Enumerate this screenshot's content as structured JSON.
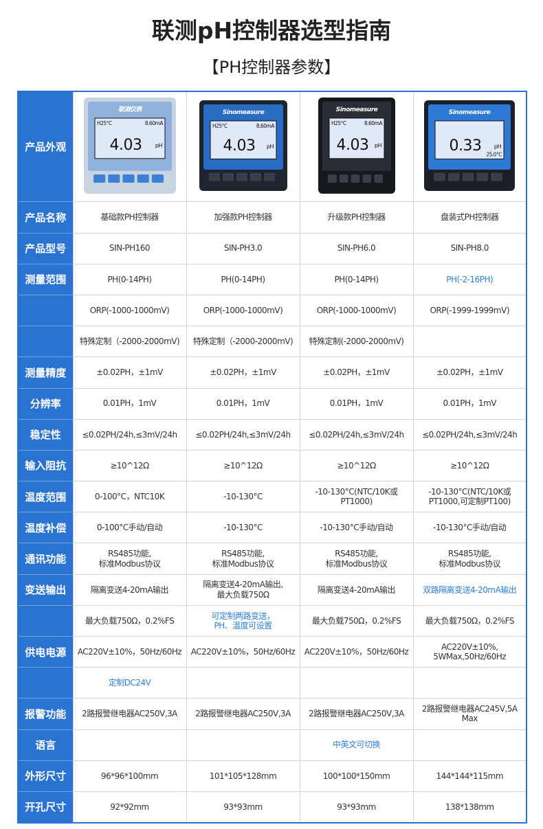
{
  "header": {
    "title": "联测pH控制器选型指南",
    "subtitle": "【PH控制器参数】"
  },
  "table": {
    "appearance_label": "产品外观",
    "devices": [
      {
        "brand": "联测仪表",
        "status": [
          "H25°C",
          "8.60mA"
        ],
        "reading": "4.03",
        "unit": "pH"
      },
      {
        "brand": "Sinomeasure",
        "status": [
          "H25°C",
          "8.60mA"
        ],
        "reading": "4.03",
        "unit": "pH"
      },
      {
        "brand": "Sinomeasure",
        "status": [
          "H25°C",
          "8.60mA"
        ],
        "reading": "4.03",
        "unit": "pH"
      },
      {
        "brand": "Sinomeasure",
        "status": [
          "25.0°C"
        ],
        "reading": "0.33",
        "unit": "pH"
      }
    ],
    "rows": [
      {
        "label": "产品名称",
        "cells": [
          "基础款PH控制器",
          "加强款PH控制器",
          "升级款PH控制器",
          "盘装式PH控制器"
        ]
      },
      {
        "label": "产品型号",
        "cells": [
          "SIN-PH160",
          "SIN-PH3.0",
          "SIN-PH6.0",
          "SIN-PH8.0"
        ]
      },
      {
        "label": "测量范围",
        "cells": [
          "PH(0-14PH)",
          "PH(0-14PH)",
          "PH(0-14PH)",
          {
            "text": "PH(-2-16PH)",
            "color": "#2f7fd8"
          }
        ]
      },
      {
        "label": null,
        "cells": [
          "ORP(-1000-1000mV)",
          "ORP(-1000-1000mV)",
          "ORP(-1000-1000mV)",
          "ORP(-1999-1999mV)"
        ]
      },
      {
        "label": null,
        "cells": [
          "特殊定制（-2000-2000mV)",
          "特殊定制（-2000-2000mV)",
          "特殊定制(-2000-2000mV)",
          null
        ]
      },
      {
        "label": "测量精度",
        "cells": [
          "±0.02PH，±1mV",
          "±0.02PH，±1mV",
          "±0.02PH，±1mV",
          "±0.02PH，±1mV"
        ]
      },
      {
        "label": "分辨率",
        "cells": [
          "0.01PH，1mV",
          "0.01PH，1mV",
          "0.01PH，1mV",
          "0.01PH，1mV"
        ]
      },
      {
        "label": "稳定性",
        "cells": [
          "≤0.02PH/24h,≤3mV/24h",
          "≤0.02PH/24h,≤3mV/24h",
          "≤0.02PH/24h,≤3mV/24h",
          "≤0.02PH/24h,≤3mV/24h"
        ]
      },
      {
        "label": "输入阻抗",
        "cells": [
          "≥10^12Ω",
          "≥10^12Ω",
          "≥10^12Ω",
          "≥10^12Ω"
        ]
      },
      {
        "label": "温度范围",
        "cells": [
          "0-100°C，NTC10K",
          "-10-130°C",
          "-10-130°C(NTC/10K或PT1000)",
          "-10-130°C(NTC/10K或\nPT1000,可定制PT100)"
        ]
      },
      {
        "label": "温度补偿",
        "cells": [
          "0-100°C手动/自动",
          "-10-130°C",
          "-10-130°C手动/自动",
          "-10-130°C手动/自动"
        ]
      },
      {
        "label": "通讯功能",
        "cells": [
          "RS485功能,\n标准Modbus协议",
          "RS485功能,\n标准Modbus协议",
          "RS485功能,\n标准Modbus协议",
          "RS485功能,\n标准Modbus协议"
        ]
      },
      {
        "label": "变送输出",
        "cells": [
          "隔离变送4-20mA输出",
          "隔离变送4-20mA输出,\n最大负载750Ω",
          "隔离变送4-20mA输出",
          {
            "text": "双路隔离变送4-20mA输出",
            "color": "#2f7fd8"
          }
        ]
      },
      {
        "label": null,
        "cells": [
          "最大负载750Ω，0.2%FS",
          {
            "text": "可定制两路变送，\nPH、温度可设置",
            "color": "#2f7fd8"
          },
          "最大负载750Ω，0.2%FS",
          "最大负载750Ω，0.2%FS"
        ]
      },
      {
        "label": "供电电源",
        "cells": [
          "AC220V±10%，50Hz/60Hz",
          "AC220V±10%，50Hz/60Hz",
          "AC220V±10%，50Hz/60Hz",
          "AC220V±10%,\n5WMax,50Hz/60Hz"
        ]
      },
      {
        "label": null,
        "cells": [
          {
            "text": "定制DC24V",
            "color": "#2f7fd8"
          },
          null,
          null,
          null
        ]
      },
      {
        "label": "报警功能",
        "cells": [
          "2路报警继电器AC250V,3A",
          "2路报警继电器AC250V,3A",
          "2路报警继电器AC250V,3A",
          "2路报警继电器AC245V,5A Max"
        ]
      },
      {
        "label": "语言",
        "cells": [
          null,
          null,
          {
            "text": "中英文可切换",
            "color": "#2f7fd8"
          },
          null
        ]
      },
      {
        "label": "外形尺寸",
        "cells": [
          "96*96*100mm",
          "101*105*128mm",
          "100*100*150mm",
          "144*144*115mm"
        ]
      },
      {
        "label": "开孔尺寸",
        "cells": [
          "92*92mm",
          "93*93mm",
          "93*93mm",
          "138*138mm"
        ]
      }
    ]
  }
}
